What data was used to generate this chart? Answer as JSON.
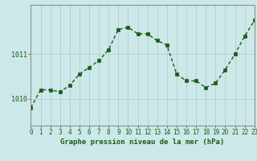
{
  "x": [
    0,
    1,
    2,
    3,
    4,
    5,
    6,
    7,
    8,
    9,
    10,
    11,
    12,
    13,
    14,
    15,
    16,
    17,
    18,
    19,
    20,
    21,
    22,
    23
  ],
  "y": [
    1009.8,
    1010.2,
    1010.2,
    1010.15,
    1010.3,
    1010.55,
    1010.7,
    1010.85,
    1011.1,
    1011.55,
    1011.6,
    1011.45,
    1011.45,
    1011.3,
    1011.2,
    1010.55,
    1010.4,
    1010.4,
    1010.25,
    1010.35,
    1010.65,
    1011.0,
    1011.4,
    1011.75
  ],
  "line_color": "#1a5c1a",
  "marker_color": "#1a5c1a",
  "bg_color": "#cce8e8",
  "grid_color": "#b0cccc",
  "xlabel": "Graphe pression niveau de la mer (hPa)",
  "xlabel_color": "#1a5c1a",
  "tick_color": "#1a5c1a",
  "ytick_labels": [
    "1010",
    "1011"
  ],
  "ytick_values": [
    1010,
    1011
  ],
  "ylim_min": 1009.4,
  "ylim_max": 1012.1,
  "line_width": 1.0,
  "marker_size": 2.5,
  "tick_fontsize": 5.5,
  "xlabel_fontsize": 6.5
}
